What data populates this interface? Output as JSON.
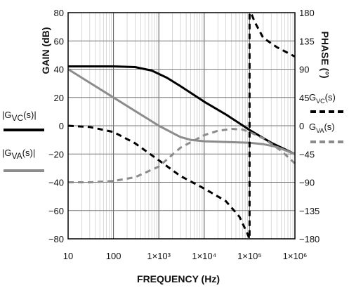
{
  "chart_data": {
    "type": "line",
    "x_scale": "log",
    "xlabel": "FREQUENCY (Hz)",
    "ylabel_left": "GAIN (dB)",
    "ylabel_right": "PHASE (°)",
    "xlim": [
      10,
      1000000
    ],
    "ylim_left": [
      -80,
      80
    ],
    "ylim_right": [
      -180,
      180
    ],
    "grid": true,
    "x_ticks": [
      {
        "value": 10,
        "label": "10"
      },
      {
        "value": 100,
        "label": "100"
      },
      {
        "value": 1000,
        "label": "1×10³"
      },
      {
        "value": 10000,
        "label": "1×10⁴"
      },
      {
        "value": 100000,
        "label": "1×10⁵"
      },
      {
        "value": 1000000,
        "label": "1×10⁶"
      }
    ],
    "y_ticks_left": [
      "80",
      "60",
      "40",
      "20",
      "0",
      "−20",
      "−40",
      "−60",
      "−80"
    ],
    "y_ticks_left_values": [
      80,
      60,
      40,
      20,
      0,
      -20,
      -40,
      -60,
      -80
    ],
    "y_ticks_right": [
      "180",
      "135",
      "90",
      "45",
      "0",
      "−45",
      "−90",
      "−135",
      "−180"
    ],
    "y_ticks_right_values": [
      180,
      135,
      90,
      45,
      0,
      -45,
      -90,
      -135,
      -180
    ],
    "series": [
      {
        "name": "|GVC(s)|",
        "axis": "left",
        "color": "#000000",
        "style": "solid",
        "x": [
          10,
          100,
          300,
          700,
          1500,
          3000,
          10000,
          30000,
          100000,
          300000,
          1000000
        ],
        "y": [
          42,
          42,
          41.5,
          39,
          34,
          28,
          17,
          8,
          -3,
          -12,
          -20
        ]
      },
      {
        "name": "|GVA(s)|",
        "axis": "left",
        "color": "#8c8c8c",
        "style": "solid",
        "x": [
          10,
          100,
          1000,
          3000,
          5000,
          10000,
          30000,
          100000,
          200000,
          400000,
          1000000
        ],
        "y": [
          40,
          20,
          0,
          -8,
          -10,
          -11,
          -11.5,
          -12,
          -13,
          -15,
          -20
        ]
      },
      {
        "name": "GVC(s)",
        "axis": "right",
        "color": "#000000",
        "style": "dashed",
        "x": [
          10,
          30,
          100,
          300,
          1000,
          3000,
          10000,
          30000,
          60000,
          90000,
          100000,
          100001,
          110000,
          130000,
          200000,
          400000,
          1000000
        ],
        "y": [
          0,
          -2,
          -10,
          -28,
          -55,
          -80,
          -100,
          -120,
          -145,
          -172,
          -180,
          180,
          178,
          165,
          140,
          125,
          110
        ]
      },
      {
        "name": "GVA(s)",
        "axis": "right",
        "color": "#8c8c8c",
        "style": "dashed",
        "x": [
          10,
          30,
          100,
          300,
          1000,
          3000,
          10000,
          20000,
          40000,
          70000,
          100000,
          200000,
          500000,
          1000000
        ],
        "y": [
          -90,
          -90,
          -88,
          -82,
          -65,
          -35,
          -15,
          -8,
          -5,
          -6,
          -10,
          -20,
          -40,
          -60
        ]
      }
    ]
  },
  "legend": [
    {
      "glyph": "|",
      "label_main": "G",
      "label_sub": "VC",
      "label_tail": "(s)",
      "glyph_end": "|",
      "color": "#000000",
      "style": "solid",
      "text_size": "large"
    },
    {
      "glyph": "|",
      "label_main": "G",
      "label_sub": "VA",
      "label_tail": "(s)",
      "glyph_end": "|",
      "color": "#8c8c8c",
      "style": "solid",
      "text_size": "large"
    },
    {
      "glyph": "",
      "label_main": "G",
      "label_sub": "VC",
      "label_tail": "(s)",
      "glyph_end": "",
      "color": "#000000",
      "style": "dashed",
      "text_size": "small"
    },
    {
      "glyph": "",
      "label_main": "G",
      "label_sub": "VA",
      "label_tail": "(s)",
      "glyph_end": "",
      "color": "#8c8c8c",
      "style": "dashed",
      "text_size": "small"
    }
  ]
}
